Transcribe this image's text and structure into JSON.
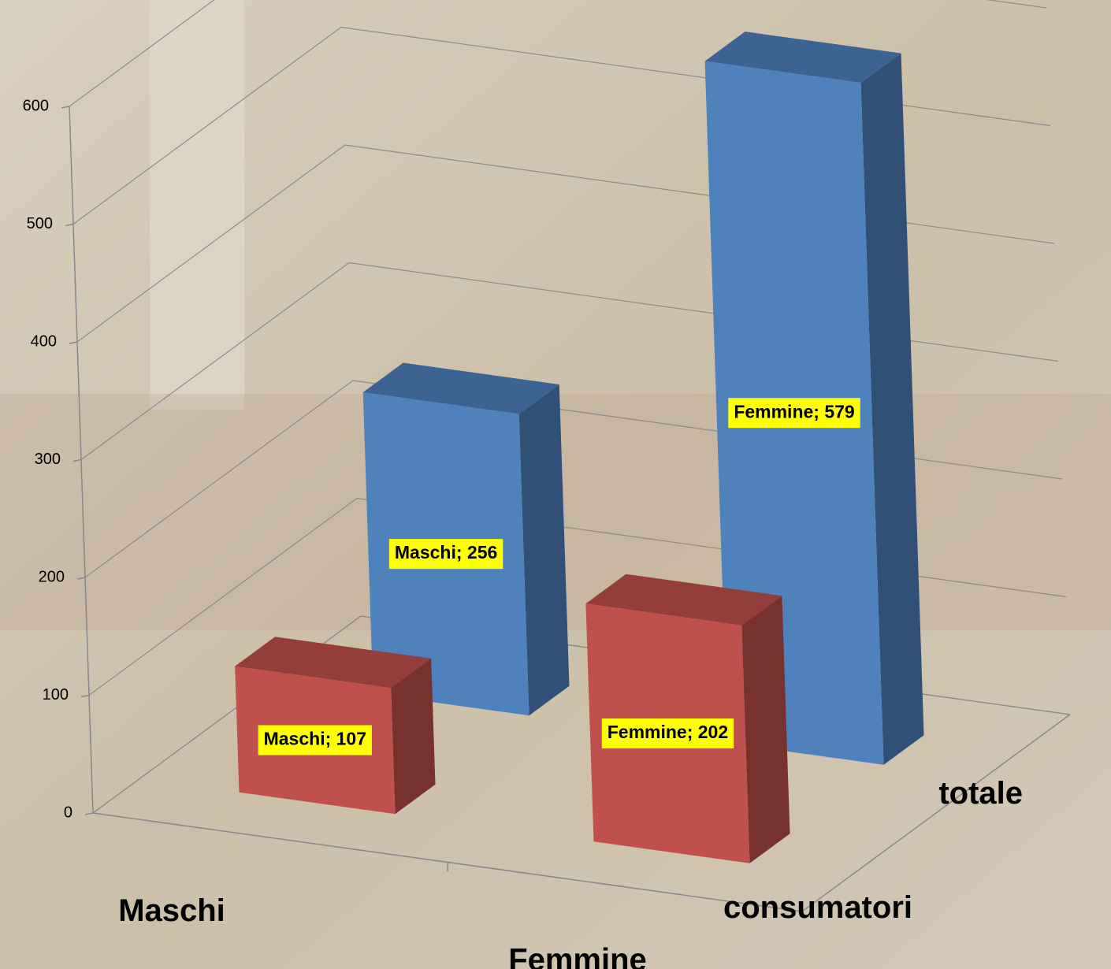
{
  "chart_data": {
    "type": "bar3d",
    "categories": [
      "Maschi",
      "Femmine"
    ],
    "series": [
      {
        "name": "consumatori",
        "color": "#c0504d",
        "values": [
          107,
          202
        ],
        "value_labels": [
          "Maschi; 107",
          "Femmine; 202"
        ]
      },
      {
        "name": "totale",
        "color": "#4f81bd",
        "values": [
          256,
          579
        ],
        "value_labels": [
          "Maschi; 256",
          "Femmine; 579"
        ]
      }
    ],
    "ylim": [
      0,
      600
    ],
    "yticks": [
      0,
      100,
      200,
      300,
      400,
      500,
      600
    ],
    "grid": true
  }
}
